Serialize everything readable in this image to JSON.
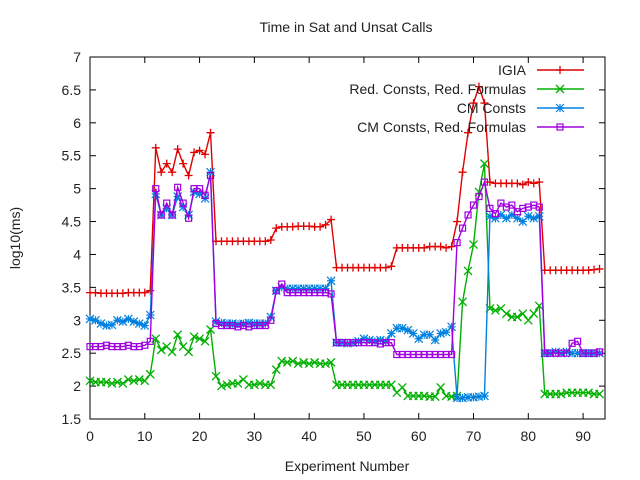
{
  "chart_data": {
    "type": "line",
    "title": "Time in Sat and Unsat Calls",
    "xlabel": "Experiment Number",
    "ylabel": "log10(ms)",
    "xlim": [
      0,
      94
    ],
    "ylim": [
      1.5,
      7
    ],
    "xticks": [
      0,
      10,
      20,
      30,
      40,
      50,
      60,
      70,
      80,
      90
    ],
    "yticks": [
      1.5,
      2,
      2.5,
      3,
      3.5,
      4,
      4.5,
      5,
      5.5,
      6,
      6.5,
      7
    ],
    "grid": false,
    "legend_position": "top-right",
    "series": [
      {
        "name": "IGIA",
        "color": "#e00000",
        "marker": "plus",
        "x": [
          0,
          1,
          2,
          3,
          4,
          5,
          6,
          7,
          8,
          9,
          10,
          11,
          12,
          13,
          14,
          15,
          16,
          17,
          18,
          19,
          20,
          21,
          22,
          23,
          24,
          25,
          26,
          27,
          28,
          29,
          30,
          31,
          32,
          33,
          34,
          35,
          36,
          37,
          38,
          39,
          40,
          41,
          42,
          43,
          44,
          45,
          46,
          47,
          48,
          49,
          50,
          51,
          52,
          53,
          54,
          55,
          56,
          57,
          58,
          59,
          60,
          61,
          62,
          63,
          64,
          65,
          66,
          67,
          68,
          69,
          70,
          71,
          72,
          73,
          74,
          75,
          76,
          77,
          78,
          79,
          80,
          81,
          82,
          83,
          84,
          85,
          86,
          87,
          88,
          89,
          90,
          91,
          92,
          93
        ],
        "y": [
          3.42,
          3.42,
          3.41,
          3.41,
          3.41,
          3.41,
          3.41,
          3.42,
          3.42,
          3.42,
          3.42,
          3.45,
          5.62,
          5.25,
          5.38,
          5.25,
          5.6,
          5.38,
          5.2,
          5.55,
          5.58,
          5.52,
          5.85,
          4.2,
          4.2,
          4.2,
          4.2,
          4.2,
          4.2,
          4.2,
          4.2,
          4.2,
          4.2,
          4.22,
          4.4,
          4.42,
          4.42,
          4.42,
          4.43,
          4.43,
          4.43,
          4.42,
          4.42,
          4.45,
          4.53,
          3.8,
          3.8,
          3.8,
          3.8,
          3.8,
          3.8,
          3.8,
          3.8,
          3.8,
          3.8,
          3.82,
          4.1,
          4.1,
          4.1,
          4.1,
          4.1,
          4.1,
          4.12,
          4.12,
          4.12,
          4.1,
          4.12,
          4.5,
          5.25,
          5.85,
          6.3,
          6.55,
          6.3,
          5.1,
          5.08,
          5.08,
          5.08,
          5.08,
          5.08,
          5.06,
          5.1,
          5.08,
          5.1,
          3.76,
          3.76,
          3.76,
          3.76,
          3.76,
          3.76,
          3.76,
          3.76,
          3.76,
          3.77,
          3.78
        ]
      },
      {
        "name": "Red. Consts, Red. Formulas",
        "color": "#00b000",
        "marker": "x",
        "x": [
          0,
          1,
          2,
          3,
          4,
          5,
          6,
          7,
          8,
          9,
          10,
          11,
          12,
          13,
          14,
          15,
          16,
          17,
          18,
          19,
          20,
          21,
          22,
          23,
          24,
          25,
          26,
          27,
          28,
          29,
          30,
          31,
          32,
          33,
          34,
          35,
          36,
          37,
          38,
          39,
          40,
          41,
          42,
          43,
          44,
          45,
          46,
          47,
          48,
          49,
          50,
          51,
          52,
          53,
          54,
          55,
          56,
          57,
          58,
          59,
          60,
          61,
          62,
          63,
          64,
          65,
          66,
          67,
          68,
          69,
          70,
          71,
          72,
          73,
          74,
          75,
          76,
          77,
          78,
          79,
          80,
          81,
          82,
          83,
          84,
          85,
          86,
          87,
          88,
          89,
          90,
          91,
          92,
          93
        ],
        "y": [
          2.08,
          2.06,
          2.06,
          2.06,
          2.04,
          2.06,
          2.04,
          2.1,
          2.08,
          2.1,
          2.08,
          2.18,
          2.72,
          2.55,
          2.6,
          2.52,
          2.78,
          2.6,
          2.52,
          2.75,
          2.72,
          2.68,
          2.86,
          2.15,
          2.0,
          2.02,
          2.04,
          2.04,
          2.1,
          2.02,
          2.02,
          2.04,
          2.02,
          2.02,
          2.25,
          2.38,
          2.36,
          2.38,
          2.34,
          2.36,
          2.34,
          2.36,
          2.34,
          2.34,
          2.36,
          2.02,
          2.02,
          2.02,
          2.02,
          2.02,
          2.02,
          2.02,
          2.02,
          2.02,
          2.02,
          2.02,
          1.9,
          1.98,
          1.85,
          1.85,
          1.85,
          1.85,
          1.84,
          1.84,
          1.98,
          1.85,
          1.84,
          1.85,
          3.28,
          3.75,
          4.15,
          4.95,
          5.38,
          3.18,
          3.15,
          3.18,
          3.1,
          3.05,
          3.05,
          3.1,
          3.0,
          3.1,
          3.22,
          1.88,
          1.88,
          1.88,
          1.88,
          1.9,
          1.9,
          1.9,
          1.9,
          1.9,
          1.88,
          1.88
        ]
      },
      {
        "name": "CM Consts",
        "color": "#0080e0",
        "marker": "star",
        "x": [
          0,
          1,
          2,
          3,
          4,
          5,
          6,
          7,
          8,
          9,
          10,
          11,
          12,
          13,
          14,
          15,
          16,
          17,
          18,
          19,
          20,
          21,
          22,
          23,
          24,
          25,
          26,
          27,
          28,
          29,
          30,
          31,
          32,
          33,
          34,
          35,
          36,
          37,
          38,
          39,
          40,
          41,
          42,
          43,
          44,
          45,
          46,
          47,
          48,
          49,
          50,
          51,
          52,
          53,
          54,
          55,
          56,
          57,
          58,
          59,
          60,
          61,
          62,
          63,
          64,
          65,
          66,
          67,
          68,
          69,
          70,
          71,
          72,
          73,
          74,
          75,
          76,
          77,
          78,
          79,
          80,
          81,
          82,
          83,
          84,
          85,
          86,
          87,
          88,
          89,
          90,
          91,
          92,
          93
        ],
        "y": [
          3.02,
          3.0,
          2.95,
          2.92,
          2.93,
          3.0,
          2.98,
          3.02,
          2.98,
          2.95,
          2.92,
          3.08,
          4.92,
          4.6,
          4.7,
          4.6,
          4.88,
          4.72,
          4.6,
          4.95,
          4.92,
          4.85,
          5.25,
          2.98,
          2.96,
          2.95,
          2.95,
          2.94,
          2.95,
          2.96,
          2.95,
          2.95,
          2.95,
          3.05,
          3.45,
          3.5,
          3.48,
          3.48,
          3.48,
          3.48,
          3.48,
          3.48,
          3.48,
          3.48,
          3.6,
          2.66,
          2.66,
          2.65,
          2.66,
          2.68,
          2.72,
          2.7,
          2.68,
          2.7,
          2.68,
          2.8,
          2.88,
          2.88,
          2.85,
          2.8,
          2.72,
          2.78,
          2.78,
          2.7,
          2.8,
          2.82,
          2.9,
          1.82,
          1.82,
          1.83,
          1.83,
          1.84,
          1.85,
          4.58,
          4.55,
          4.6,
          4.55,
          4.6,
          4.55,
          4.5,
          4.58,
          4.55,
          4.58,
          2.5,
          2.5,
          2.52,
          2.5,
          2.52,
          2.5,
          2.5,
          2.5,
          2.5,
          2.5,
          2.5
        ]
      },
      {
        "name": "CM Consts, Red. Formulas",
        "color": "#a000e0",
        "marker": "box",
        "x": [
          0,
          1,
          2,
          3,
          4,
          5,
          6,
          7,
          8,
          9,
          10,
          11,
          12,
          13,
          14,
          15,
          16,
          17,
          18,
          19,
          20,
          21,
          22,
          23,
          24,
          25,
          26,
          27,
          28,
          29,
          30,
          31,
          32,
          33,
          34,
          35,
          36,
          37,
          38,
          39,
          40,
          41,
          42,
          43,
          44,
          45,
          46,
          47,
          48,
          49,
          50,
          51,
          52,
          53,
          54,
          55,
          56,
          57,
          58,
          59,
          60,
          61,
          62,
          63,
          64,
          65,
          66,
          67,
          68,
          69,
          70,
          71,
          72,
          73,
          74,
          75,
          76,
          77,
          78,
          79,
          80,
          81,
          82,
          83,
          84,
          85,
          86,
          87,
          88,
          89,
          90,
          91,
          92,
          93
        ],
        "y": [
          2.6,
          2.6,
          2.6,
          2.62,
          2.6,
          2.6,
          2.6,
          2.62,
          2.6,
          2.6,
          2.62,
          2.68,
          5.0,
          4.6,
          4.78,
          4.6,
          5.02,
          4.78,
          4.55,
          5.0,
          5.0,
          4.9,
          5.2,
          2.95,
          2.92,
          2.92,
          2.92,
          2.9,
          2.92,
          2.9,
          2.92,
          2.92,
          2.92,
          3.0,
          3.45,
          3.55,
          3.42,
          3.42,
          3.42,
          3.42,
          3.42,
          3.42,
          3.42,
          3.42,
          3.4,
          2.66,
          2.66,
          2.66,
          2.66,
          2.66,
          2.66,
          2.66,
          2.66,
          2.64,
          2.66,
          2.66,
          2.48,
          2.48,
          2.48,
          2.48,
          2.48,
          2.48,
          2.48,
          2.48,
          2.48,
          2.48,
          2.48,
          4.18,
          4.4,
          4.6,
          4.75,
          4.88,
          5.1,
          4.7,
          4.62,
          4.78,
          4.72,
          4.75,
          4.65,
          4.7,
          4.72,
          4.75,
          4.72,
          2.5,
          2.5,
          2.5,
          2.5,
          2.5,
          2.65,
          2.68,
          2.5,
          2.5,
          2.5,
          2.52
        ]
      }
    ]
  }
}
